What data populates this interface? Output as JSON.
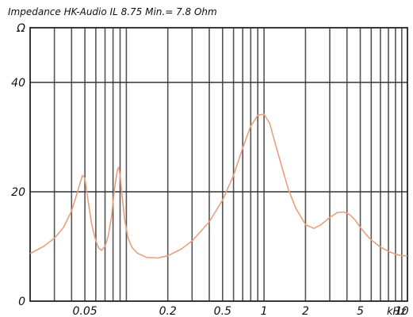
{
  "chart_data": {
    "type": "line",
    "title": "Impedance HK-Audio IL 8.75 Min.= 7.8 Ohm",
    "xscale": "log",
    "xlim": [
      0.02,
      11
    ],
    "ylim": [
      0,
      50
    ],
    "grid": true,
    "y_unit": "Ω",
    "x_unit": "kHz",
    "y_ticks": [
      {
        "value": 0,
        "label": "0"
      },
      {
        "value": 20,
        "label": "20"
      },
      {
        "value": 40,
        "label": "40"
      },
      {
        "value": 50,
        "label": "Ω"
      }
    ],
    "x_ticks": [
      {
        "value": 0.05,
        "label": "0.05"
      },
      {
        "value": 0.2,
        "label": "0.2"
      },
      {
        "value": 0.5,
        "label": "0.5"
      },
      {
        "value": 1,
        "label": "1"
      },
      {
        "value": 2,
        "label": "2"
      },
      {
        "value": 5,
        "label": "5"
      },
      {
        "value": 10,
        "label": "10"
      }
    ],
    "x_gridlines": [
      0.03,
      0.04,
      0.05,
      0.06,
      0.07,
      0.08,
      0.09,
      0.1,
      0.2,
      0.3,
      0.4,
      0.5,
      0.6,
      0.7,
      0.8,
      0.9,
      1,
      2,
      3,
      4,
      5,
      6,
      7,
      8,
      9,
      10
    ],
    "y_gridlines": [
      20,
      40
    ],
    "series": [
      {
        "color": "#e8a07c",
        "x": [
          0.02,
          0.025,
          0.03,
          0.035,
          0.04,
          0.043,
          0.046,
          0.048,
          0.05,
          0.053,
          0.056,
          0.06,
          0.063,
          0.066,
          0.07,
          0.074,
          0.078,
          0.082,
          0.086,
          0.088,
          0.09,
          0.093,
          0.097,
          0.103,
          0.11,
          0.12,
          0.14,
          0.17,
          0.2,
          0.25,
          0.3,
          0.4,
          0.5,
          0.6,
          0.7,
          0.8,
          0.9,
          1.0,
          1.1,
          1.2,
          1.35,
          1.5,
          1.7,
          2.0,
          2.3,
          2.6,
          3.0,
          3.4,
          3.8,
          4.2,
          4.6,
          5.0,
          5.5,
          6.0,
          7.0,
          8.0,
          9.0,
          10.0,
          11.0
        ],
        "y": [
          8.7,
          10,
          11.5,
          13.5,
          16.5,
          19,
          21.5,
          23,
          22.5,
          18,
          14,
          11,
          9.7,
          9.3,
          10,
          12,
          15.5,
          20.5,
          24,
          24.5,
          23,
          19.5,
          15,
          11.5,
          9.8,
          8.8,
          8.0,
          7.9,
          8.3,
          9.5,
          11,
          14.5,
          18.5,
          23,
          28,
          32,
          34,
          34.2,
          32.5,
          29,
          24.5,
          20.5,
          17,
          14,
          13.3,
          14,
          15.3,
          16.2,
          16.3,
          15.8,
          14.8,
          13.5,
          12.2,
          11.2,
          9.9,
          9.1,
          8.6,
          8.3,
          8.3
        ]
      }
    ]
  }
}
